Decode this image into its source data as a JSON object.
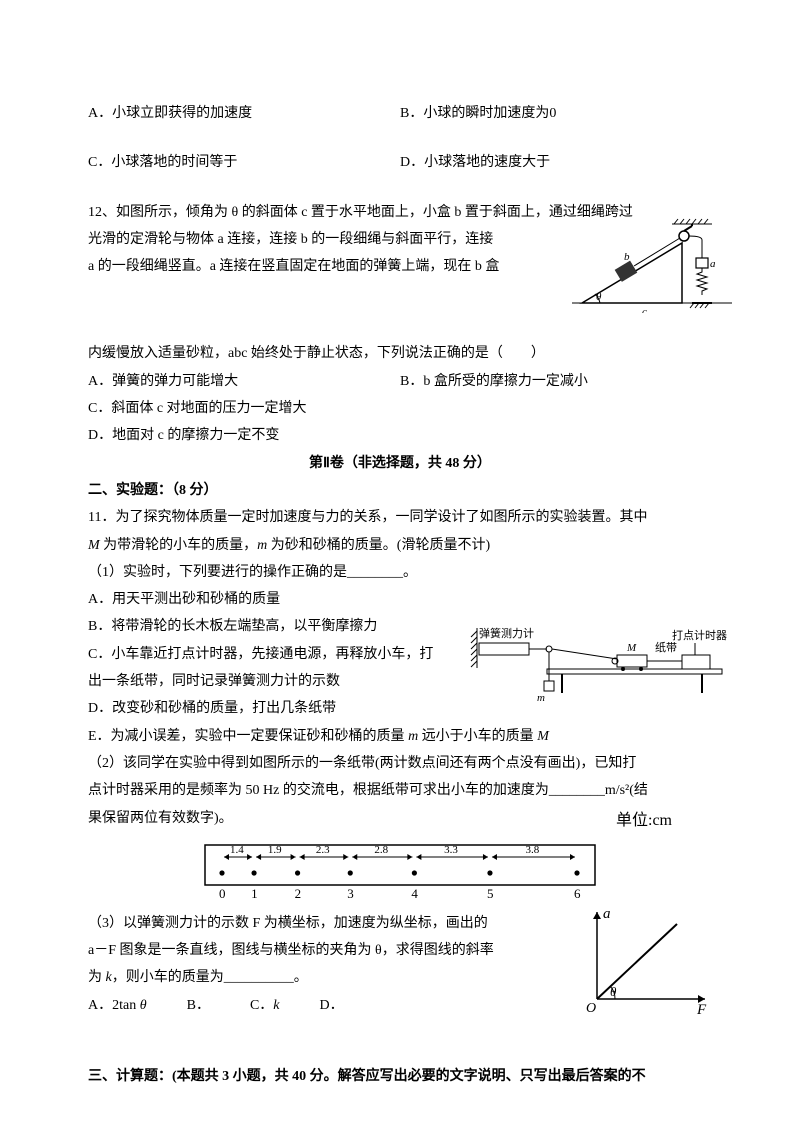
{
  "q11opts": {
    "a": "A．小球立即获得的加速度",
    "b": "B．小球的瞬时加速度为0",
    "c": "C．小球落地的时间等于",
    "d": "D．小球落地的速度大于"
  },
  "q12": {
    "stem1": "12、如图所示，倾角为 θ 的斜面体 c 置于水平地面上，小盒 b 置于斜面上，通过细绳跨过",
    "stem2": "光滑的定滑轮与物体 a 连接，连接 b 的一段细绳与斜面平行，连接",
    "stem3": "a 的一段细绳竖直。a 连接在竖直固定在地面的弹簧上端，现在 b 盒",
    "stem4": "内缓慢放入适量砂粒，abc 始终处于静止状态，下列说法正确的是（　　）",
    "a": "A．弹簧的弹力可能增大",
    "b": "B．b 盒所受的摩擦力一定减小",
    "c": "C．斜面体 c 对地面的压力一定增大",
    "d": "D．地面对 c 的摩擦力一定不变"
  },
  "part2": {
    "title": "第Ⅱ卷（非选择题，共 48 分）",
    "sec2": "二、实验题：（8 分）"
  },
  "q11exp": {
    "stem": "11．为了探究物体质量一定时加速度与力的关系，一同学设计了如图所示的实验装置。其中",
    "stem2": "M 为带滑轮的小车的质量，m 为砂和砂桶的质量。(滑轮质量不计)",
    "p1": "（1）实验时，下列要进行的操作正确的是________。",
    "a": "A．用天平测出砂和砂桶的质量",
    "b": "B．将带滑轮的长木板左端垫高，以平衡摩擦力",
    "c": "C．小车靠近打点计时器，先接通电源，再释放小车，打出一条纸带，同时记录弹簧测力计的示数",
    "d": "D．改变砂和砂桶的质量，打出几条纸带",
    "e": "E．为减小误差，实验中一定要保证砂和砂桶的质量 m 远小于小车的质量 M",
    "p2a": "（2）该同学在实验中得到如图所示的一条纸带(两计数点间还有两个点没有画出)，已知打",
    "p2b": "点计时器采用的是频率为 50 Hz 的交流电，根据纸带可求出小车的加速度为________m/s²(结",
    "p2c": "果保留两位有效数字)。",
    "unit": "单位:cm",
    "tape_vals": [
      "1.4",
      "1.9",
      "2.3",
      "2.8",
      "3.3",
      "3.8"
    ],
    "tape_idx": [
      "0",
      "1",
      "2",
      "3",
      "4",
      "5",
      "6"
    ],
    "p3a": "（3）以弹簧测力计的示数 F 为横坐标，加速度为纵坐标，画出的",
    "p3b": "a－F 图象是一条直线，图线与横坐标的夹角为 θ，求得图线的斜率",
    "p3c": "为 k，则小车的质量为__________。",
    "optA": "A．2tan θ",
    "optB": "B．",
    "optC": "C．k",
    "optD": "D．"
  },
  "sec3": "三、计算题：(本题共 3 小题，共 40 分。解答应写出必要的文字说明、只写出最后答案的不",
  "svg": {
    "incline": {
      "stroke": "#000000",
      "fill": "#ffffff",
      "block_fill": "#333333",
      "spring": "#000000"
    },
    "apparatus": {
      "labels": {
        "spring": "弹簧测力计",
        "cart": "M",
        "tape": "纸带",
        "timer": "打点计时器"
      }
    },
    "tape": {
      "border": "#000000"
    },
    "graph": {
      "axis": "#000000",
      "xlabel": "F",
      "ylabel": "a",
      "angle": "θ",
      "origin": "O"
    }
  }
}
